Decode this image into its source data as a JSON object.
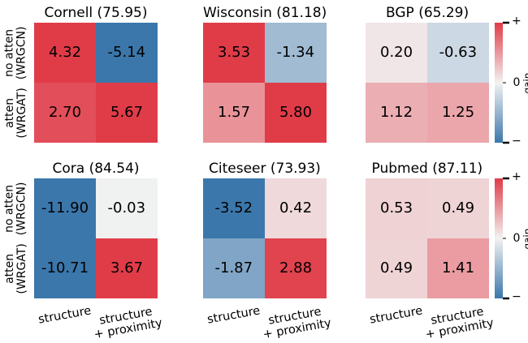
{
  "colormap": [
    "#3b77ab",
    "#f2f2f2",
    "#e03c48"
  ],
  "chart_data": [
    {
      "type": "heatmap",
      "title": "Cornell (75.95)",
      "rows": [
        "no atten\n(WRGCN)",
        "atten\n(WRGAT)"
      ],
      "values": [
        [
          4.32,
          -5.14
        ],
        [
          2.7,
          5.67
        ]
      ],
      "value_labels": [
        [
          "4.32",
          "-5.14"
        ],
        [
          "2.70",
          "5.67"
        ]
      ]
    },
    {
      "type": "heatmap",
      "title": "Wisconsin (81.18)",
      "values": [
        [
          3.53,
          -1.34
        ],
        [
          1.57,
          5.8
        ]
      ],
      "value_labels": [
        [
          "3.53",
          "-1.34"
        ],
        [
          "1.57",
          "5.80"
        ]
      ]
    },
    {
      "type": "heatmap",
      "title": "BGP (65.29)",
      "values": [
        [
          0.2,
          -0.63
        ],
        [
          1.12,
          1.25
        ]
      ],
      "value_labels": [
        [
          "0.20",
          "-0.63"
        ],
        [
          "1.12",
          "1.25"
        ]
      ],
      "colorbar": {
        "label": "gain",
        "lim": [
          -3,
          3
        ],
        "ticks": [
          {
            "value": 3,
            "label": "+"
          },
          0,
          {
            "value": -3,
            "label": "−"
          }
        ]
      }
    },
    {
      "type": "heatmap",
      "title": "Cora (84.54)",
      "rows": [
        "no atten\n(WRGCN)",
        "atten\n(WRGAT)"
      ],
      "columns": [
        "structure",
        "structure\n+ proximity"
      ],
      "values": [
        [
          -11.9,
          -0.03
        ],
        [
          -10.71,
          3.67
        ]
      ],
      "value_labels": [
        [
          "-11.90",
          "-0.03"
        ],
        [
          "-10.71",
          "3.67"
        ]
      ]
    },
    {
      "type": "heatmap",
      "title": "Citeseer (73.93)",
      "columns": [
        "structure",
        "structure\n+ proximity"
      ],
      "values": [
        [
          -3.52,
          0.42
        ],
        [
          -1.87,
          2.88
        ]
      ],
      "value_labels": [
        [
          "-3.52",
          "0.42"
        ],
        [
          "-1.87",
          "2.88"
        ]
      ]
    },
    {
      "type": "heatmap",
      "title": "Pubmed (87.11)",
      "columns": [
        "structure",
        "structure\n+ proximity"
      ],
      "values": [
        [
          0.53,
          0.49
        ],
        [
          0.49,
          1.41
        ]
      ],
      "value_labels": [
        [
          "0.53",
          "0.49"
        ],
        [
          "0.49",
          "1.41"
        ]
      ],
      "colorbar": {
        "label": "gain",
        "lim": [
          -3,
          3
        ],
        "ticks": [
          {
            "value": 3,
            "label": "+"
          },
          0,
          {
            "value": -3,
            "label": "−"
          }
        ]
      }
    }
  ]
}
